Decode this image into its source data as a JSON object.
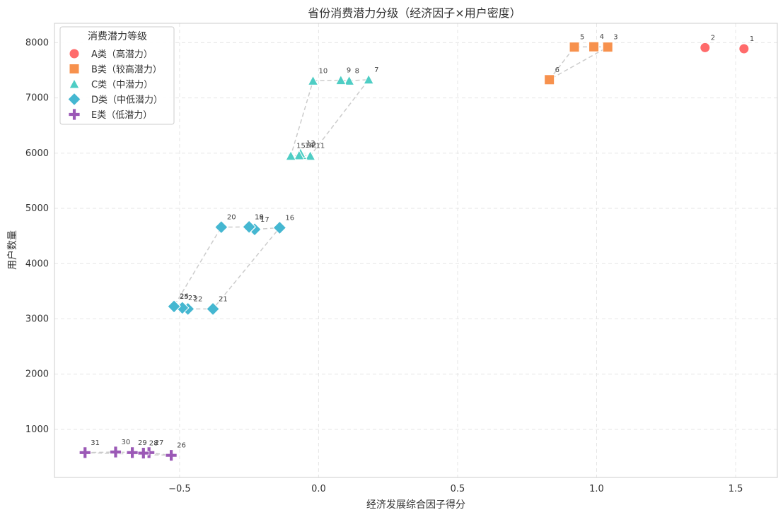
{
  "chart_data": {
    "type": "scatter",
    "title": "省份消费潜力分级（经济因子×用户密度）",
    "xlabel": "经济发展综合因子得分",
    "ylabel": "用户数量",
    "xlim": [
      -0.95,
      1.65
    ],
    "ylim": [
      130,
      8350
    ],
    "xticks": [
      -0.5,
      0.0,
      0.5,
      1.0,
      1.5
    ],
    "xtick_labels": [
      "−0.5",
      "0.0",
      "0.5",
      "1.0",
      "1.5"
    ],
    "yticks": [
      1000,
      2000,
      3000,
      4000,
      5000,
      6000,
      7000,
      8000
    ],
    "ytick_labels": [
      "1000",
      "2000",
      "3000",
      "4000",
      "5000",
      "6000",
      "7000",
      "8000"
    ],
    "grid": true,
    "legend": {
      "title": "消费潜力等级",
      "placement": "upper-left"
    },
    "series": [
      {
        "name": "A类（高潜力）",
        "marker": "circle",
        "color": "#ff6b6b",
        "points": [
          {
            "label": "1",
            "x": 1.53,
            "y": 7890
          },
          {
            "label": "2",
            "x": 1.39,
            "y": 7910
          }
        ],
        "path": []
      },
      {
        "name": "B类（较高潜力）",
        "marker": "square",
        "color": "#f7914d",
        "points": [
          {
            "label": "3",
            "x": 1.04,
            "y": 7920
          },
          {
            "label": "4",
            "x": 0.99,
            "y": 7925
          },
          {
            "label": "5",
            "x": 0.92,
            "y": 7920
          },
          {
            "label": "6",
            "x": 0.83,
            "y": 7330
          }
        ],
        "path": [
          {
            "x": 0.83,
            "y": 7330
          },
          {
            "x": 0.92,
            "y": 7920
          },
          {
            "x": 0.99,
            "y": 7925
          },
          {
            "x": 1.04,
            "y": 7920
          },
          {
            "x": 0.83,
            "y": 7330
          }
        ]
      },
      {
        "name": "C类（中潜力）",
        "marker": "triangle",
        "color": "#4ecdc4",
        "points": [
          {
            "label": "7",
            "x": 0.18,
            "y": 7330
          },
          {
            "label": "8",
            "x": 0.11,
            "y": 7310
          },
          {
            "label": "9",
            "x": 0.08,
            "y": 7320
          },
          {
            "label": "10",
            "x": -0.02,
            "y": 7310
          },
          {
            "label": "11",
            "x": -0.03,
            "y": 5950
          },
          {
            "label": "12",
            "x": -0.06,
            "y": 5965
          },
          {
            "label": "13",
            "x": -0.065,
            "y": 6000
          },
          {
            "label": "14",
            "x": -0.07,
            "y": 5960
          },
          {
            "label": "15",
            "x": -0.1,
            "y": 5950
          }
        ],
        "path": [
          {
            "x": -0.02,
            "y": 7310
          },
          {
            "x": 0.08,
            "y": 7320
          },
          {
            "x": 0.11,
            "y": 7310
          },
          {
            "x": 0.18,
            "y": 7330
          },
          {
            "x": -0.03,
            "y": 5950
          },
          {
            "x": -0.06,
            "y": 5965
          },
          {
            "x": -0.1,
            "y": 5950
          },
          {
            "x": -0.02,
            "y": 7310
          }
        ]
      },
      {
        "name": "D类（中低潜力）",
        "marker": "diamond",
        "color": "#45b7d1",
        "points": [
          {
            "label": "16",
            "x": -0.14,
            "y": 4650
          },
          {
            "label": "17",
            "x": -0.23,
            "y": 4620
          },
          {
            "label": "18",
            "x": -0.25,
            "y": 4660
          },
          {
            "label": "19",
            "x": -0.25,
            "y": 4665
          },
          {
            "label": "20",
            "x": -0.35,
            "y": 4660
          },
          {
            "label": "21",
            "x": -0.38,
            "y": 3180
          },
          {
            "label": "22",
            "x": -0.47,
            "y": 3180
          },
          {
            "label": "23",
            "x": -0.49,
            "y": 3200
          },
          {
            "label": "24",
            "x": -0.52,
            "y": 3230
          },
          {
            "label": "25",
            "x": -0.52,
            "y": 3225
          }
        ],
        "path": [
          {
            "x": -0.35,
            "y": 4660
          },
          {
            "x": -0.25,
            "y": 4665
          },
          {
            "x": -0.23,
            "y": 4620
          },
          {
            "x": -0.14,
            "y": 4650
          },
          {
            "x": -0.38,
            "y": 3180
          },
          {
            "x": -0.47,
            "y": 3180
          },
          {
            "x": -0.52,
            "y": 3230
          },
          {
            "x": -0.35,
            "y": 4660
          }
        ]
      },
      {
        "name": "E类（低潜力）",
        "marker": "plus",
        "color": "#9b59b6",
        "points": [
          {
            "label": "26",
            "x": -0.53,
            "y": 530
          },
          {
            "label": "27",
            "x": -0.61,
            "y": 580
          },
          {
            "label": "28",
            "x": -0.63,
            "y": 570
          },
          {
            "label": "29",
            "x": -0.67,
            "y": 580
          },
          {
            "label": "30",
            "x": -0.73,
            "y": 590
          },
          {
            "label": "31",
            "x": -0.84,
            "y": 580
          }
        ],
        "path": [
          {
            "x": -0.84,
            "y": 580
          },
          {
            "x": -0.73,
            "y": 590
          },
          {
            "x": -0.67,
            "y": 580
          },
          {
            "x": -0.63,
            "y": 570
          },
          {
            "x": -0.61,
            "y": 580
          },
          {
            "x": -0.53,
            "y": 530
          },
          {
            "x": -0.84,
            "y": 580
          }
        ]
      }
    ]
  }
}
